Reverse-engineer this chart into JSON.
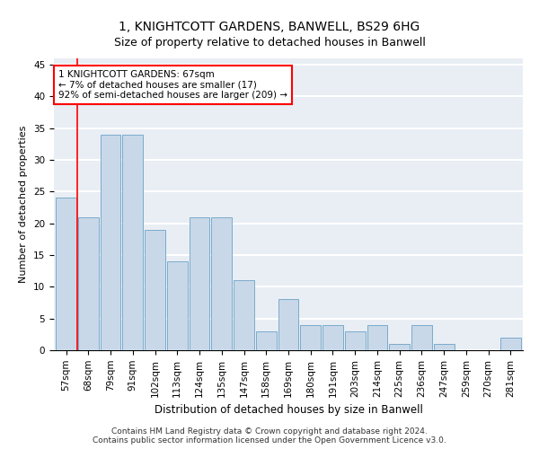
{
  "title": "1, KNIGHTCOTT GARDENS, BANWELL, BS29 6HG",
  "subtitle": "Size of property relative to detached houses in Banwell",
  "xlabel": "Distribution of detached houses by size in Banwell",
  "ylabel": "Number of detached properties",
  "categories": [
    "57sqm",
    "68sqm",
    "79sqm",
    "91sqm",
    "102sqm",
    "113sqm",
    "124sqm",
    "135sqm",
    "147sqm",
    "158sqm",
    "169sqm",
    "180sqm",
    "191sqm",
    "203sqm",
    "214sqm",
    "225sqm",
    "236sqm",
    "247sqm",
    "259sqm",
    "270sqm",
    "281sqm"
  ],
  "values": [
    24,
    21,
    34,
    34,
    19,
    14,
    21,
    21,
    11,
    3,
    8,
    4,
    4,
    3,
    4,
    1,
    4,
    1,
    0,
    0,
    2
  ],
  "bar_color": "#c8d8e8",
  "bar_edge_color": "#7aabcc",
  "annotation_line1": "1 KNIGHTCOTT GARDENS: 67sqm",
  "annotation_line2": "← 7% of detached houses are smaller (17)",
  "annotation_line3": "92% of semi-detached houses are larger (209) →",
  "annotation_box_color": "white",
  "annotation_box_edge_color": "red",
  "vline_color": "red",
  "ylim": [
    0,
    46
  ],
  "yticks": [
    0,
    5,
    10,
    15,
    20,
    25,
    30,
    35,
    40,
    45
  ],
  "bg_color": "#e8eef4",
  "grid_color": "white",
  "footer": "Contains HM Land Registry data © Crown copyright and database right 2024.\nContains public sector information licensed under the Open Government Licence v3.0.",
  "title_fontsize": 10,
  "subtitle_fontsize": 9,
  "xlabel_fontsize": 8.5,
  "ylabel_fontsize": 8,
  "tick_fontsize": 7.5,
  "footer_fontsize": 6.5,
  "annot_fontsize": 7.5
}
